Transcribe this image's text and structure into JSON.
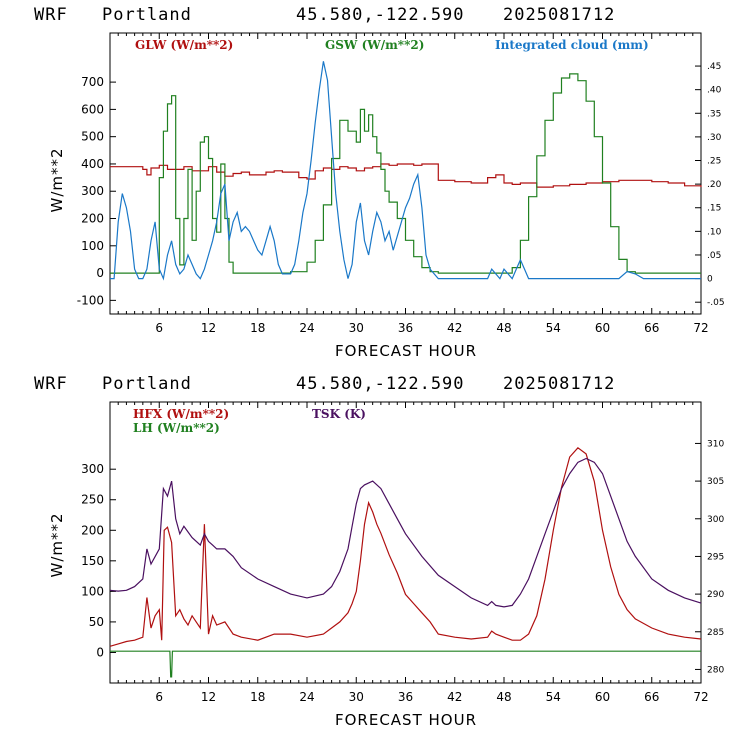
{
  "panels": [
    {
      "header": {
        "model": "WRF",
        "location": "Portland",
        "coords": "45.580,-122.590",
        "run": "2025081712"
      },
      "chart_data": {
        "type": "line",
        "xlabel": "FORECAST HOUR",
        "ylabel": "W/m**2",
        "xlim": [
          0,
          72
        ],
        "ylim": [
          -150,
          880
        ],
        "yticks": [
          -100,
          0,
          100,
          200,
          300,
          400,
          500,
          600,
          700
        ],
        "xticks": [
          6,
          12,
          18,
          24,
          30,
          36,
          42,
          48,
          54,
          60,
          66,
          72
        ],
        "y2lim": [
          -0.075,
          0.52
        ],
        "y2ticks": [
          -0.05,
          0,
          0.05,
          0.1,
          0.15,
          0.2,
          0.25,
          0.3,
          0.35,
          0.4,
          0.45
        ],
        "y2ticklabels": [
          "-.05",
          "0",
          ".05",
          ".10",
          ".15",
          ".20",
          ".25",
          ".30",
          ".35",
          ".40",
          ".45"
        ],
        "series": [
          {
            "name": "GLW (W/m**2)",
            "color": "#b01010",
            "axis": "left",
            "step": true,
            "x": [
              0,
              4,
              4.5,
              5,
              6,
              7,
              9,
              10,
              12,
              13,
              14,
              15,
              16,
              17,
              18,
              19,
              20,
              21,
              22,
              23,
              24,
              25,
              26,
              27,
              28,
              29,
              30,
              31,
              32,
              33,
              34,
              35,
              36,
              37,
              38,
              39,
              40,
              42,
              44,
              45,
              46,
              47,
              48,
              49,
              50,
              52,
              54,
              56,
              58,
              60,
              62,
              64,
              66,
              68,
              70,
              72
            ],
            "y": [
              390,
              380,
              360,
              385,
              395,
              380,
              390,
              375,
              390,
              370,
              355,
              365,
              370,
              360,
              360,
              370,
              375,
              370,
              370,
              350,
              345,
              375,
              385,
              380,
              390,
              385,
              375,
              385,
              390,
              400,
              395,
              400,
              400,
              395,
              400,
              400,
              340,
              335,
              330,
              330,
              350,
              360,
              330,
              325,
              330,
              315,
              320,
              325,
              330,
              335,
              340,
              340,
              335,
              330,
              320,
              315
            ]
          },
          {
            "name": "GSW (W/m**2)",
            "color": "#208020",
            "axis": "left",
            "step": true,
            "x": [
              0,
              5.5,
              6,
              6.5,
              7,
              7.5,
              8,
              8.5,
              9,
              9.5,
              10,
              10.5,
              11,
              11.5,
              12,
              12.5,
              13,
              13.5,
              14,
              14.5,
              15,
              20,
              22,
              24,
              25,
              26,
              27,
              28,
              29,
              30,
              30.5,
              31,
              31.5,
              32,
              32.5,
              33,
              33.5,
              34,
              35,
              36,
              37,
              38,
              39,
              40,
              48,
              49,
              50,
              51,
              52,
              53,
              54,
              55,
              56,
              57,
              58,
              59,
              60,
              61,
              62,
              63,
              64,
              72
            ],
            "y": [
              0,
              0,
              350,
              520,
              620,
              650,
              200,
              30,
              200,
              380,
              120,
              300,
              480,
              500,
              420,
              200,
              150,
              400,
              200,
              40,
              0,
              0,
              5,
              40,
              120,
              250,
              420,
              560,
              520,
              480,
              600,
              520,
              580,
              500,
              440,
              380,
              300,
              260,
              200,
              120,
              60,
              20,
              5,
              0,
              0,
              20,
              120,
              280,
              430,
              560,
              660,
              715,
              730,
              705,
              630,
              500,
              330,
              170,
              50,
              5,
              0,
              0
            ]
          },
          {
            "name": "Integrated cloud (mm)",
            "color": "#1a78c8",
            "axis": "right",
            "step": false,
            "x": [
              0,
              0.5,
              1,
              1.5,
              2,
              2.5,
              3,
              3.5,
              4,
              4.5,
              5,
              5.5,
              6,
              6.5,
              7,
              7.5,
              8,
              8.5,
              9,
              9.5,
              10,
              10.5,
              11,
              11.5,
              12,
              12.5,
              13,
              13.5,
              14,
              14.5,
              15,
              15.5,
              16,
              16.5,
              17,
              17.5,
              18,
              18.5,
              19,
              19.5,
              20,
              20.5,
              21,
              21.5,
              22,
              22.5,
              23,
              23.5,
              24,
              24.5,
              25,
              25.5,
              26,
              26.5,
              27,
              27.5,
              28,
              28.5,
              29,
              29.5,
              30,
              30.5,
              31,
              31.5,
              32,
              32.5,
              33,
              33.5,
              34,
              34.5,
              35,
              35.5,
              36,
              36.5,
              37,
              37.5,
              38,
              38.5,
              39,
              40,
              46,
              46.5,
              47,
              47.5,
              48,
              48.5,
              49,
              49.5,
              50,
              50.5,
              51,
              62,
              63,
              64,
              65,
              66,
              72
            ],
            "y": [
              0,
              0,
              0.12,
              0.18,
              0.15,
              0.1,
              0.02,
              0,
              0,
              0.02,
              0.08,
              0.12,
              0.02,
              0,
              0.05,
              0.08,
              0.03,
              0.01,
              0.02,
              0.05,
              0.03,
              0.01,
              0,
              0.02,
              0.05,
              0.08,
              0.12,
              0.18,
              0.2,
              0.08,
              0.12,
              0.14,
              0.1,
              0.11,
              0.1,
              0.08,
              0.06,
              0.05,
              0.08,
              0.11,
              0.08,
              0.03,
              0.01,
              0.01,
              0.01,
              0.03,
              0.08,
              0.14,
              0.18,
              0.25,
              0.33,
              0.4,
              0.46,
              0.42,
              0.3,
              0.18,
              0.1,
              0.04,
              0,
              0.03,
              0.12,
              0.16,
              0.08,
              0.05,
              0.1,
              0.14,
              0.12,
              0.08,
              0.1,
              0.06,
              0.09,
              0.12,
              0.15,
              0.17,
              0.2,
              0.22,
              0.15,
              0.05,
              0.02,
              0,
              0,
              0.02,
              0.01,
              0,
              0.02,
              0.01,
              0,
              0.02,
              0.04,
              0.02,
              0,
              0,
              0.015,
              0.01,
              0,
              0,
              0
            ]
          }
        ]
      }
    },
    {
      "header": {
        "model": "WRF",
        "location": "Portland",
        "coords": "45.580,-122.590",
        "run": "2025081712"
      },
      "chart_data": {
        "type": "line",
        "xlabel": "FORECAST HOUR",
        "ylabel": "W/m**2",
        "xlim": [
          0,
          72
        ],
        "ylim": [
          -50,
          410
        ],
        "yticks": [
          0,
          50,
          100,
          150,
          200,
          250,
          300
        ],
        "xticks": [
          6,
          12,
          18,
          24,
          30,
          36,
          42,
          48,
          54,
          60,
          66,
          72
        ],
        "y2lim": [
          278.2,
          315.5
        ],
        "y2ticks": [
          280,
          285,
          290,
          295,
          300,
          305,
          310
        ],
        "y2ticklabels": [
          "280",
          "285",
          "290",
          "295",
          "300",
          "305",
          "310"
        ],
        "series": [
          {
            "name": "HFX (W/m**2)",
            "color": "#b01010",
            "axis": "left",
            "step": false,
            "x": [
              0,
              1,
              2,
              3,
              4,
              4.5,
              5,
              5.5,
              6,
              6.3,
              6.6,
              7,
              7.5,
              8,
              8.5,
              9,
              9.5,
              10,
              10.5,
              11,
              11.5,
              12,
              12.5,
              13,
              14,
              15,
              16,
              18,
              20,
              22,
              24,
              26,
              27,
              28,
              29,
              29.5,
              30,
              30.5,
              31,
              31.5,
              32,
              32.5,
              33,
              34,
              35,
              36,
              37,
              38,
              39,
              40,
              42,
              44,
              46,
              46.5,
              47,
              48,
              49,
              50,
              51,
              52,
              53,
              54,
              55,
              56,
              57,
              58,
              59,
              60,
              61,
              62,
              63,
              64,
              66,
              68,
              70,
              72
            ],
            "y": [
              10,
              14,
              18,
              20,
              25,
              90,
              40,
              60,
              70,
              20,
              200,
              205,
              180,
              60,
              70,
              55,
              45,
              60,
              50,
              40,
              210,
              30,
              60,
              45,
              50,
              30,
              25,
              20,
              30,
              30,
              25,
              30,
              40,
              50,
              65,
              80,
              100,
              150,
              210,
              245,
              230,
              210,
              195,
              160,
              130,
              95,
              80,
              65,
              50,
              30,
              25,
              22,
              25,
              35,
              30,
              25,
              20,
              20,
              30,
              60,
              120,
              200,
              270,
              320,
              335,
              325,
              280,
              200,
              140,
              95,
              70,
              55,
              40,
              30,
              25,
              22
            ]
          },
          {
            "name": "LH (W/m**2)",
            "color": "#208020",
            "axis": "left",
            "step": false,
            "x": [
              0,
              7.3,
              7.4,
              7.5,
              7.6,
              72
            ],
            "y": [
              2,
              2,
              -40,
              -40,
              2,
              2
            ]
          },
          {
            "name": "TSK (K)",
            "color": "#4a1060",
            "axis": "right",
            "step": false,
            "x": [
              0,
              1,
              2,
              3,
              4,
              4.5,
              5,
              6,
              6.5,
              7,
              7.5,
              8,
              8.5,
              9,
              10,
              11,
              11.5,
              12,
              12.5,
              13,
              14,
              15,
              16,
              18,
              20,
              22,
              24,
              26,
              27,
              28,
              29,
              29.5,
              30,
              30.5,
              31,
              32,
              33,
              34,
              35,
              36,
              38,
              40,
              42,
              44,
              46,
              46.5,
              47,
              48,
              49,
              50,
              51,
              52,
              53,
              54,
              55,
              56,
              57,
              58,
              59,
              60,
              61,
              62,
              63,
              64,
              66,
              68,
              70,
              72
            ],
            "y": [
              290.5,
              290.4,
              290.5,
              291,
              292,
              296,
              294,
              296,
              304,
              303,
              305,
              300,
              298,
              299,
              297.5,
              296.5,
              298,
              297,
              296.5,
              296,
              296,
              295,
              293.5,
              292,
              291,
              290,
              289.5,
              290,
              291,
              293,
              296,
              299,
              302,
              304,
              304.5,
              305,
              304,
              302,
              300,
              298,
              295,
              292.5,
              291,
              289.5,
              288.5,
              289,
              288.5,
              288.3,
              288.5,
              290,
              292,
              295,
              298,
              301,
              304,
              306,
              307.5,
              308,
              307.5,
              306,
              303,
              300,
              297,
              295,
              292,
              290.5,
              289.5,
              288.8
            ]
          }
        ]
      }
    }
  ]
}
